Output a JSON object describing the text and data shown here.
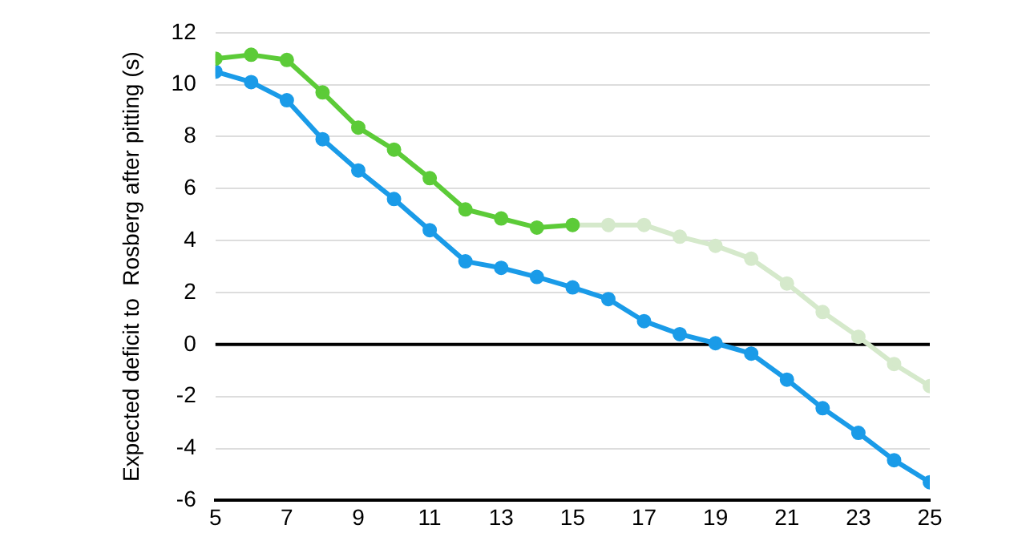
{
  "chart_data": {
    "type": "line",
    "ylabel": "Expected deficit to  Rosberg after pitting (s)",
    "x": [
      5,
      6,
      7,
      8,
      9,
      10,
      11,
      12,
      13,
      14,
      15,
      16,
      17,
      18,
      19,
      20,
      21,
      22,
      23,
      24,
      25
    ],
    "series": [
      {
        "color": "#5ccb38",
        "x": [
          5,
          6,
          7,
          8,
          9,
          10,
          11,
          12,
          13,
          14,
          15
        ],
        "values": [
          11.0,
          11.15,
          10.95,
          9.7,
          8.35,
          7.5,
          6.4,
          5.2,
          4.85,
          4.5,
          4.6
        ]
      },
      {
        "color": "#d5e9cb",
        "x": [
          15,
          16,
          17,
          18,
          19,
          20,
          21,
          22,
          23,
          24,
          25
        ],
        "values": [
          4.6,
          4.6,
          4.6,
          4.15,
          3.8,
          3.3,
          2.35,
          1.25,
          0.3,
          -0.75,
          -1.6
        ]
      },
      {
        "color": "#1a9be8",
        "values": [
          10.5,
          10.1,
          9.4,
          7.9,
          6.7,
          5.6,
          4.4,
          3.2,
          2.95,
          2.6,
          2.2,
          1.75,
          0.9,
          0.4,
          0.05,
          -0.35,
          -1.35,
          -2.45,
          -3.4,
          -4.45,
          -5.3
        ]
      }
    ],
    "xlim": [
      5,
      25
    ],
    "xticks": [
      5,
      7,
      9,
      11,
      13,
      15,
      17,
      19,
      21,
      23,
      25
    ],
    "ylim": [
      -6,
      12
    ],
    "yticks": [
      -6,
      -4,
      -2,
      0,
      2,
      4,
      6,
      8,
      10,
      12
    ],
    "ref_lines": [
      {
        "axis": "y",
        "value": 0,
        "color": "#000000"
      }
    ],
    "grid": "y",
    "legend": false,
    "marker": "circle",
    "line_style": "solid"
  }
}
